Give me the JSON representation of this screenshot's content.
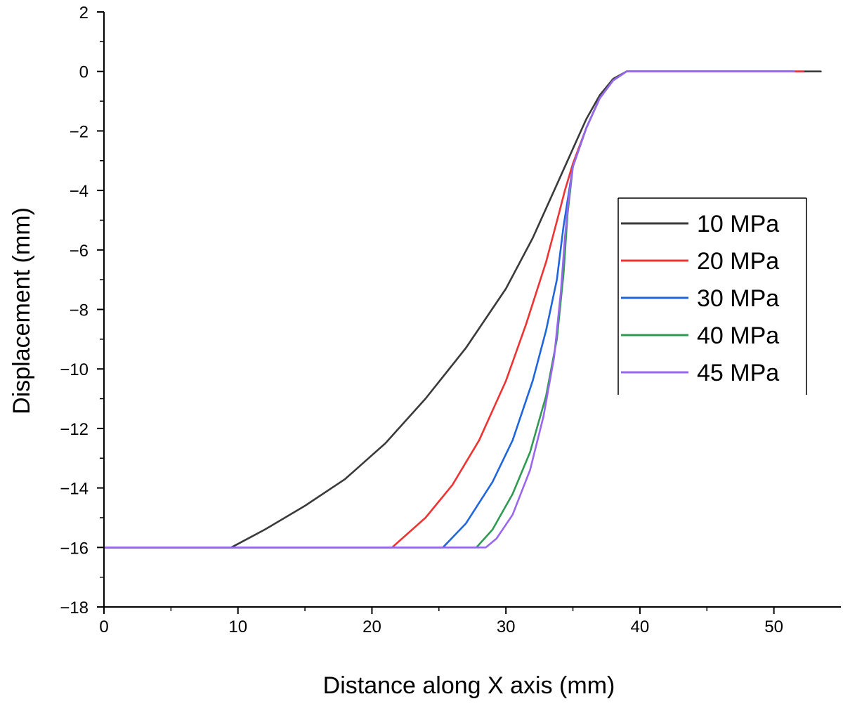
{
  "chart_data": {
    "type": "line",
    "title": "",
    "xlabel": "Distance along X axis (mm)",
    "ylabel": "Displacement (mm)",
    "xlim": [
      0,
      55
    ],
    "ylim": [
      -18,
      2
    ],
    "xticks": [
      0,
      10,
      20,
      30,
      40,
      50
    ],
    "yticks": [
      2,
      0,
      -2,
      -4,
      -6,
      -8,
      -10,
      -12,
      -14,
      -16,
      -18
    ],
    "x_minor_step": 5,
    "y_minor_step": 1,
    "grid": false,
    "legend_position": "center-right",
    "series": [
      {
        "name": "10 MPa",
        "color": "#3a3a3a",
        "x": [
          0,
          9.5,
          12,
          15,
          18,
          21,
          24,
          27,
          30,
          32,
          34,
          35,
          36,
          37,
          38,
          39,
          40,
          45,
          50,
          53.5
        ],
        "y": [
          -16,
          -16,
          -15.4,
          -14.6,
          -13.7,
          -12.5,
          -11.0,
          -9.3,
          -7.3,
          -5.6,
          -3.6,
          -2.6,
          -1.6,
          -0.8,
          -0.25,
          0,
          0,
          0,
          0,
          0
        ]
      },
      {
        "name": "20 MPa",
        "color": "#ee3333",
        "x": [
          0,
          21.5,
          24,
          26,
          28,
          30,
          31.5,
          33,
          34,
          34.4,
          35,
          36,
          37,
          38,
          39,
          40,
          45,
          50,
          52.2
        ],
        "y": [
          -16,
          -16,
          -15.0,
          -13.9,
          -12.4,
          -10.4,
          -8.5,
          -6.4,
          -4.7,
          -4.0,
          -3.1,
          -1.9,
          -0.9,
          -0.3,
          0,
          0,
          0,
          0,
          0
        ]
      },
      {
        "name": "30 MPa",
        "color": "#1f66dd",
        "x": [
          0,
          25.3,
          27,
          29,
          30.5,
          32,
          33,
          33.8,
          34.3,
          35,
          36,
          37,
          38,
          39,
          40,
          45,
          50,
          51.5
        ],
        "y": [
          -16,
          -16,
          -15.2,
          -13.8,
          -12.4,
          -10.4,
          -8.7,
          -7.0,
          -5.2,
          -3.2,
          -1.9,
          -0.9,
          -0.3,
          0,
          0,
          0,
          0,
          0
        ]
      },
      {
        "name": "40 MPa",
        "color": "#2e9a52",
        "x": [
          0,
          27.8,
          29,
          30.5,
          31.8,
          33,
          33.8,
          34.3,
          34.6,
          35,
          36,
          37,
          38,
          39,
          40,
          45,
          50,
          51.5
        ],
        "y": [
          -16,
          -16,
          -15.4,
          -14.2,
          -12.8,
          -10.9,
          -9.0,
          -6.8,
          -4.8,
          -3.2,
          -1.9,
          -0.9,
          -0.3,
          0,
          0,
          0,
          0,
          0
        ]
      },
      {
        "name": "45 MPa",
        "color": "#9966ee",
        "x": [
          0,
          28.5,
          29.3,
          30.5,
          31.8,
          32.8,
          33.6,
          34.1,
          34.4,
          34.7,
          35,
          36,
          37,
          38,
          39,
          40,
          45,
          50,
          51.5
        ],
        "y": [
          -16,
          -16,
          -15.7,
          -14.9,
          -13.4,
          -11.6,
          -9.6,
          -7.4,
          -5.6,
          -4.2,
          -3.2,
          -1.9,
          -0.9,
          -0.3,
          0,
          0,
          0,
          0,
          0
        ]
      }
    ]
  }
}
